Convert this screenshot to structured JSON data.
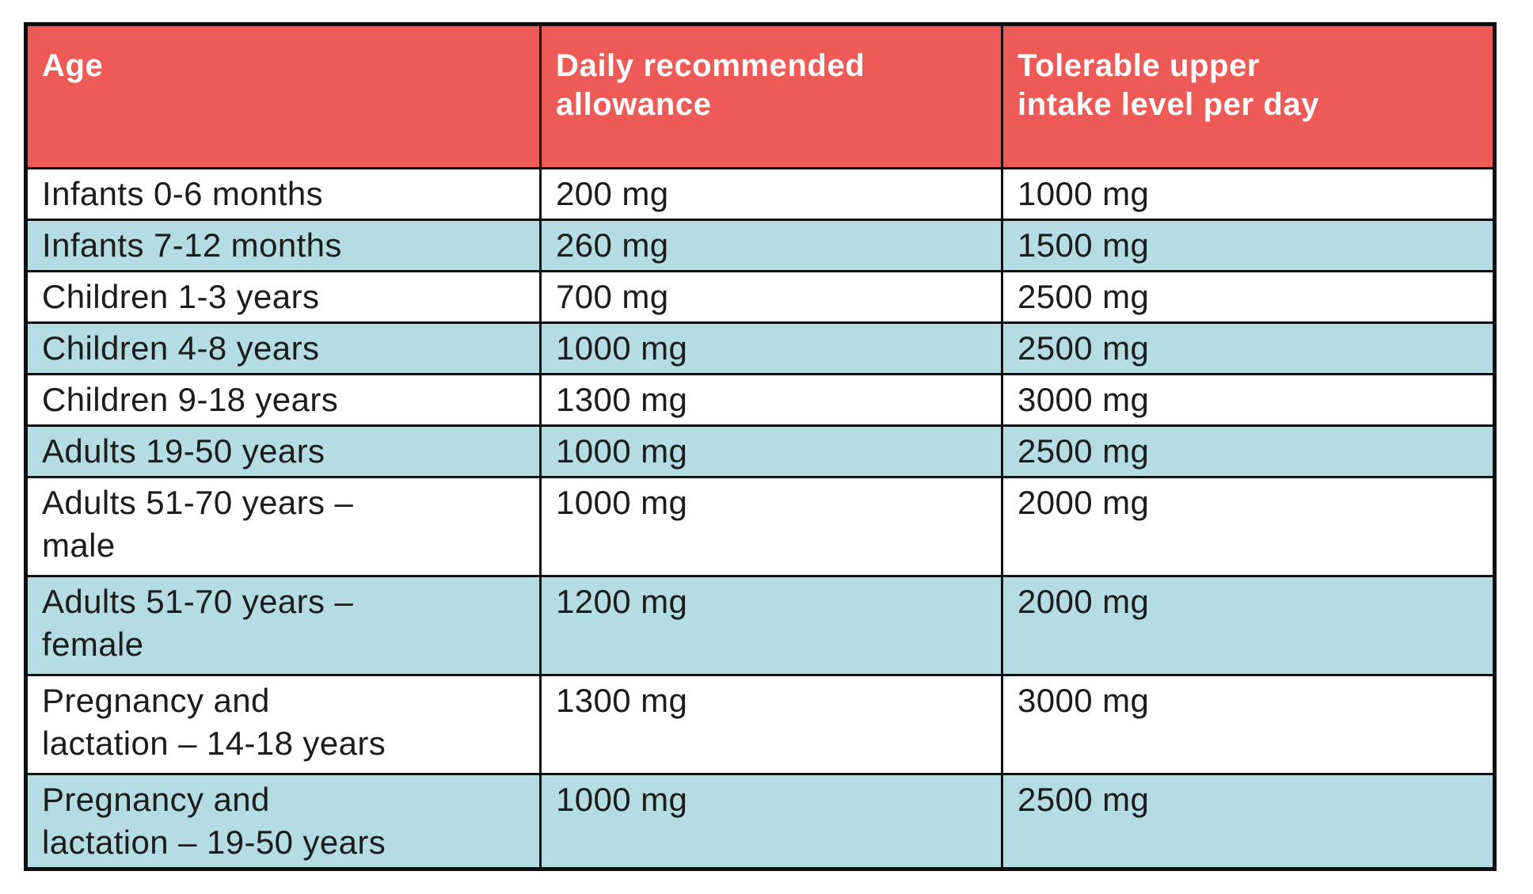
{
  "chart_data": {
    "type": "table",
    "columns": [
      "Age",
      "Daily recommended\nallowance",
      "Tolerable upper\nintake level per day"
    ],
    "rows": [
      [
        "Infants 0-6 months",
        "200 mg",
        "1000 mg"
      ],
      [
        "Infants 7-12 months",
        "260 mg",
        "1500 mg"
      ],
      [
        "Children 1-3 years",
        "700 mg",
        "2500 mg"
      ],
      [
        "Children 4-8 years",
        "1000 mg",
        "2500 mg"
      ],
      [
        "Children 9-18 years",
        "1300 mg",
        "3000 mg"
      ],
      [
        "Adults 19-50 years",
        "1000 mg",
        "2500 mg"
      ],
      [
        "Adults 51-70 years –\nmale",
        "1000 mg",
        "2000 mg"
      ],
      [
        "Adults 51-70 years –\nfemale",
        "1200 mg",
        "2000 mg"
      ],
      [
        "Pregnancy and\nlactation – 14-18 years",
        "1300 mg",
        "3000 mg"
      ],
      [
        "Pregnancy and\nlactation – 19-50 years",
        "1000 mg",
        "2500 mg"
      ]
    ],
    "layout": {
      "grid": "all-borders",
      "row_striping": "alternating white and light blue starting with white",
      "header_style": "bold white text on coral red"
    }
  },
  "colors": {
    "header-bg": "#ee5b57",
    "header-text": "#ffffff",
    "row-bg": "#ffffff",
    "row-alt-bg": "#b4dde3",
    "border": "#0f0f0f",
    "text": "#1c1c1c"
  }
}
